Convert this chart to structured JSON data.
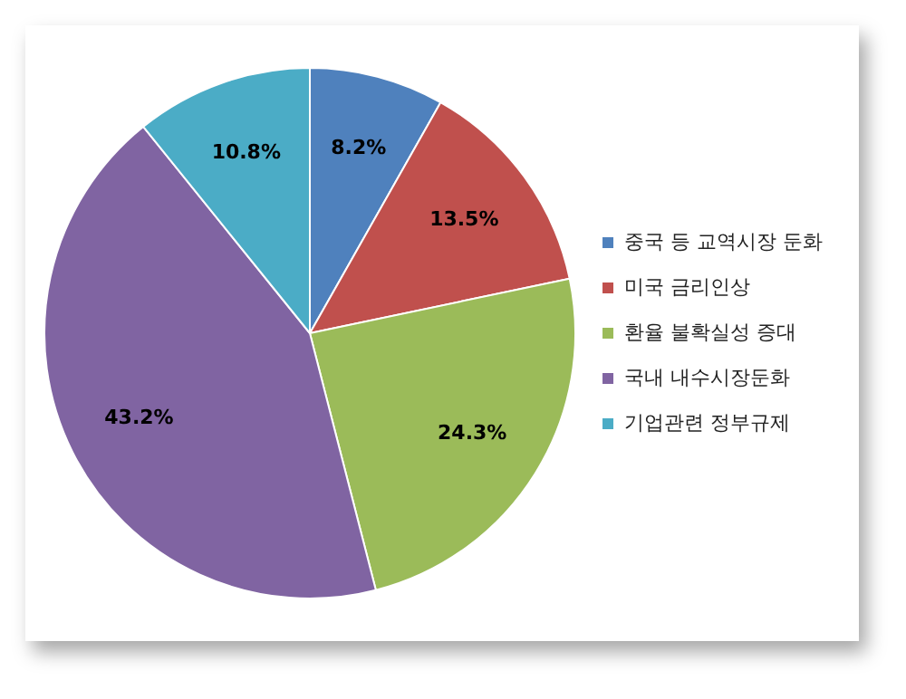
{
  "chart_data": {
    "type": "pie",
    "categories": [
      "중국 등 교역시장 둔화",
      "미국 금리인상",
      "환율 불확실성 증대",
      "국내 내수시장둔화",
      "기업관련 정부규제"
    ],
    "values": [
      8.2,
      13.5,
      24.3,
      43.2,
      10.8
    ],
    "value_labels": [
      "8.2%",
      "13.5%",
      "24.3%",
      "43.2%",
      "10.8%"
    ],
    "colors": [
      "#4f81bd",
      "#c0504d",
      "#9bbb59",
      "#8064a2",
      "#4bacc6"
    ],
    "legend": "right"
  }
}
